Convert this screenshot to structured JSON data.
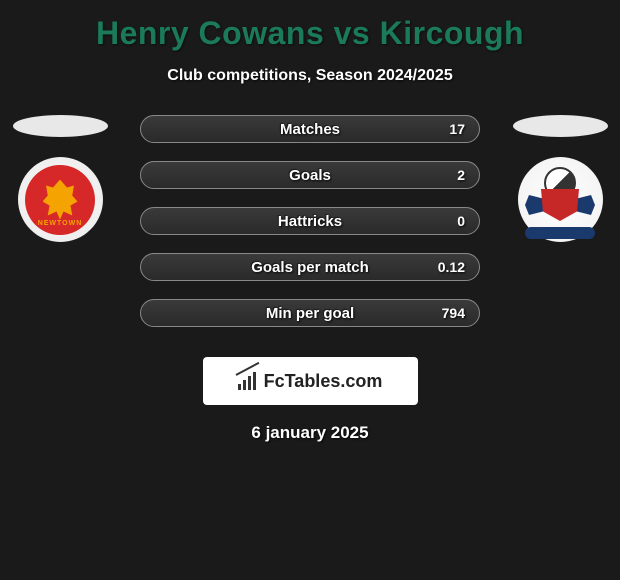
{
  "title": "Henry Cowans vs Kircough",
  "subtitle": "Club competitions, Season 2024/2025",
  "title_color": "#1a7a5a",
  "background_color": "#1a1a1a",
  "stats": [
    {
      "label": "Matches",
      "value": "17"
    },
    {
      "label": "Goals",
      "value": "2"
    },
    {
      "label": "Hattricks",
      "value": "0"
    },
    {
      "label": "Goals per match",
      "value": "0.12"
    },
    {
      "label": "Min per goal",
      "value": "794"
    }
  ],
  "stat_bar": {
    "height": 28,
    "border_color": "#888888",
    "bg_top": "#3a3a3a",
    "bg_bottom": "#2a2a2a",
    "label_fontsize": 15,
    "value_fontsize": 14
  },
  "logo_text": "FcTables.com",
  "date": "6 january 2025",
  "badges": {
    "left": {
      "name": "team-badge-left"
    },
    "right": {
      "name": "team-badge-right"
    }
  }
}
